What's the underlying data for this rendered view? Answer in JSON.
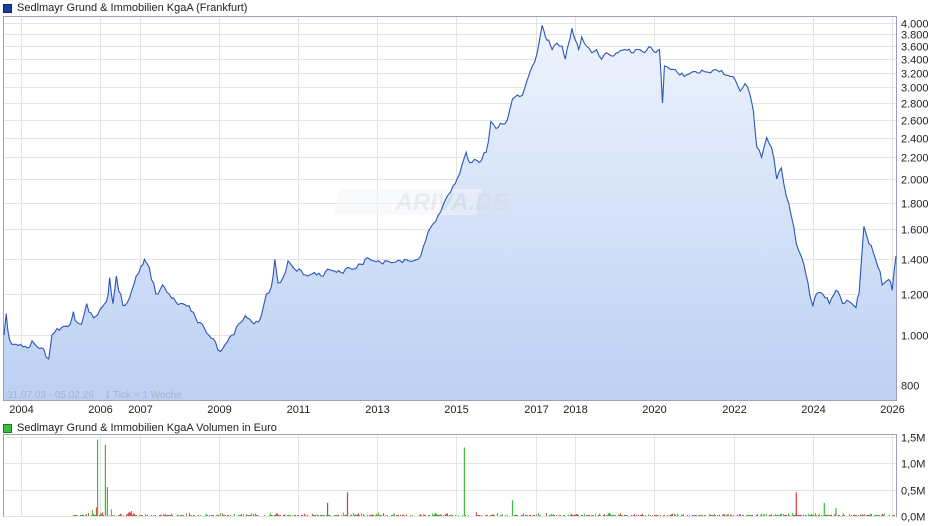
{
  "price_chart": {
    "title": "Sedlmayr Grund & Immobilien KgaA (Frankfurt)",
    "watermark": "ARIVA.DE",
    "info_text": "31.07.03 - 05.02.26    1 Tick = 1 Woche"
  },
  "volume_chart": {
    "title": "Sedlmayr Grund & Immobilien KgaA Volumen in Euro"
  },
  "colors": {
    "price_line": "#2a56b8",
    "area_top": "#eef3fd",
    "area_bottom": "#bcd0f3",
    "volume_up": "#3dbb3d",
    "volume_down": "#d23a3a",
    "grid": "#e4e4e4"
  },
  "chart_data": [
    {
      "type": "area",
      "name": "price",
      "y_scale": "log",
      "ylim": [
        750,
        4100
      ],
      "y_ticks": [
        {
          "value": 800,
          "label": "800"
        },
        {
          "value": 1000,
          "label": "1.000"
        },
        {
          "value": 1200,
          "label": "1.200"
        },
        {
          "value": 1400,
          "label": "1.400"
        },
        {
          "value": 1600,
          "label": "1.600"
        },
        {
          "value": 1800,
          "label": "1.800"
        },
        {
          "value": 2000,
          "label": "2.000"
        },
        {
          "value": 2200,
          "label": "2.200"
        },
        {
          "value": 2400,
          "label": "2.400"
        },
        {
          "value": 2600,
          "label": "2.600"
        },
        {
          "value": 2800,
          "label": "2.800"
        },
        {
          "value": 3000,
          "label": "3.000"
        },
        {
          "value": 3200,
          "label": "3.200"
        },
        {
          "value": 3400,
          "label": "3.400"
        },
        {
          "value": 3600,
          "label": "3.600"
        },
        {
          "value": 3800,
          "label": "3.800"
        },
        {
          "value": 4000,
          "label": "4.000"
        }
      ],
      "xlim": [
        "2003-07-31",
        "2026-02-05"
      ],
      "x_ticks": [
        {
          "date": "2004-01-01",
          "label": "2004"
        },
        {
          "date": "2006-01-01",
          "label": "2006"
        },
        {
          "date": "2007-01-01",
          "label": "2007"
        },
        {
          "date": "2009-01-01",
          "label": "2009"
        },
        {
          "date": "2011-01-01",
          "label": "2011"
        },
        {
          "date": "2013-01-01",
          "label": "2013"
        },
        {
          "date": "2015-01-01",
          "label": "2015"
        },
        {
          "date": "2017-01-01",
          "label": "2017"
        },
        {
          "date": "2018-01-01",
          "label": "2018"
        },
        {
          "date": "2020-01-01",
          "label": "2020"
        },
        {
          "date": "2022-01-01",
          "label": "2022"
        },
        {
          "date": "2024-01-01",
          "label": "2024"
        },
        {
          "date": "2026-01-01",
          "label": "2026"
        }
      ],
      "grid": true,
      "points": [
        [
          "2003-07-31",
          1000
        ],
        [
          "2003-08-20",
          1100
        ],
        [
          "2003-09-20",
          980
        ],
        [
          "2003-11-01",
          960
        ],
        [
          "2004-01-01",
          960
        ],
        [
          "2004-03-01",
          945
        ],
        [
          "2004-04-15",
          975
        ],
        [
          "2004-06-01",
          950
        ],
        [
          "2004-08-01",
          940
        ],
        [
          "2004-09-15",
          900
        ],
        [
          "2004-10-15",
          1000
        ],
        [
          "2004-12-01",
          1030
        ],
        [
          "2005-02-01",
          1040
        ],
        [
          "2005-04-01",
          1050
        ],
        [
          "2005-05-01",
          1110
        ],
        [
          "2005-06-01",
          1060
        ],
        [
          "2005-07-15",
          1050
        ],
        [
          "2005-09-01",
          1150
        ],
        [
          "2005-11-01",
          1080
        ],
        [
          "2006-01-01",
          1120
        ],
        [
          "2006-03-01",
          1160
        ],
        [
          "2006-04-01",
          1290
        ],
        [
          "2006-05-01",
          1150
        ],
        [
          "2006-06-01",
          1300
        ],
        [
          "2006-08-01",
          1140
        ],
        [
          "2006-10-01",
          1180
        ],
        [
          "2006-12-01",
          1300
        ],
        [
          "2007-01-15",
          1360
        ],
        [
          "2007-02-15",
          1400
        ],
        [
          "2007-04-01",
          1350
        ],
        [
          "2007-06-01",
          1200
        ],
        [
          "2007-08-01",
          1250
        ],
        [
          "2007-10-01",
          1200
        ],
        [
          "2007-12-01",
          1160
        ],
        [
          "2008-02-01",
          1150
        ],
        [
          "2008-04-01",
          1140
        ],
        [
          "2008-06-01",
          1080
        ],
        [
          "2008-08-01",
          1050
        ],
        [
          "2008-10-01",
          1000
        ],
        [
          "2008-12-01",
          970
        ],
        [
          "2009-01-15",
          930
        ],
        [
          "2009-03-01",
          960
        ],
        [
          "2009-05-01",
          1000
        ],
        [
          "2009-07-01",
          1050
        ],
        [
          "2009-09-01",
          1090
        ],
        [
          "2009-11-01",
          1060
        ],
        [
          "2010-01-01",
          1060
        ],
        [
          "2010-02-01",
          1100
        ],
        [
          "2010-03-15",
          1200
        ],
        [
          "2010-05-01",
          1240
        ],
        [
          "2010-06-01",
          1400
        ],
        [
          "2010-07-01",
          1260
        ],
        [
          "2010-08-15",
          1290
        ],
        [
          "2010-10-01",
          1390
        ],
        [
          "2010-12-01",
          1340
        ],
        [
          "2011-02-01",
          1330
        ],
        [
          "2011-04-01",
          1300
        ],
        [
          "2011-06-01",
          1320
        ],
        [
          "2011-08-01",
          1300
        ],
        [
          "2011-10-01",
          1340
        ],
        [
          "2011-12-01",
          1330
        ],
        [
          "2012-02-01",
          1320
        ],
        [
          "2012-04-01",
          1350
        ],
        [
          "2012-06-01",
          1340
        ],
        [
          "2012-08-01",
          1370
        ],
        [
          "2012-10-01",
          1410
        ],
        [
          "2012-12-01",
          1390
        ],
        [
          "2013-02-01",
          1380
        ],
        [
          "2013-04-01",
          1390
        ],
        [
          "2013-06-01",
          1380
        ],
        [
          "2013-08-01",
          1390
        ],
        [
          "2013-10-01",
          1395
        ],
        [
          "2013-12-01",
          1390
        ],
        [
          "2014-01-15",
          1400
        ],
        [
          "2014-03-01",
          1480
        ],
        [
          "2014-04-15",
          1580
        ],
        [
          "2014-06-01",
          1640
        ],
        [
          "2014-07-15",
          1700
        ],
        [
          "2014-09-01",
          1780
        ],
        [
          "2014-10-15",
          1860
        ],
        [
          "2014-12-01",
          1940
        ],
        [
          "2015-02-01",
          2050
        ],
        [
          "2015-04-01",
          2250
        ],
        [
          "2015-05-01",
          2150
        ],
        [
          "2015-06-15",
          2180
        ],
        [
          "2015-08-01",
          2150
        ],
        [
          "2015-10-01",
          2250
        ],
        [
          "2015-11-15",
          2580
        ],
        [
          "2016-01-01",
          2500
        ],
        [
          "2016-03-01",
          2550
        ],
        [
          "2016-04-15",
          2600
        ],
        [
          "2016-06-01",
          2850
        ],
        [
          "2016-07-15",
          2900
        ],
        [
          "2016-09-01",
          2900
        ],
        [
          "2016-10-15",
          3100
        ],
        [
          "2016-12-01",
          3300
        ],
        [
          "2017-01-15",
          3500
        ],
        [
          "2017-03-01",
          3950
        ],
        [
          "2017-04-01",
          3750
        ],
        [
          "2017-05-01",
          3700
        ],
        [
          "2017-06-01",
          3550
        ],
        [
          "2017-07-15",
          3650
        ],
        [
          "2017-09-01",
          3600
        ],
        [
          "2017-10-01",
          3400
        ],
        [
          "2017-11-01",
          3650
        ],
        [
          "2017-12-01",
          3900
        ],
        [
          "2018-01-01",
          3700
        ],
        [
          "2018-02-01",
          3550
        ],
        [
          "2018-03-01",
          3750
        ],
        [
          "2018-04-15",
          3600
        ],
        [
          "2018-06-01",
          3500
        ],
        [
          "2018-07-15",
          3550
        ],
        [
          "2018-09-01",
          3400
        ],
        [
          "2018-10-15",
          3500
        ],
        [
          "2018-12-01",
          3450
        ],
        [
          "2019-02-01",
          3500
        ],
        [
          "2019-04-01",
          3550
        ],
        [
          "2019-06-01",
          3500
        ],
        [
          "2019-08-01",
          3550
        ],
        [
          "2019-10-01",
          3500
        ],
        [
          "2019-12-01",
          3580
        ],
        [
          "2020-01-15",
          3500
        ],
        [
          "2020-02-15",
          3550
        ],
        [
          "2020-03-15",
          2800
        ],
        [
          "2020-04-01",
          3300
        ],
        [
          "2020-06-01",
          3250
        ],
        [
          "2020-08-01",
          3200
        ],
        [
          "2020-10-01",
          3150
        ],
        [
          "2020-12-01",
          3200
        ],
        [
          "2021-02-01",
          3200
        ],
        [
          "2021-04-01",
          3220
        ],
        [
          "2021-06-01",
          3200
        ],
        [
          "2021-08-01",
          3240
        ],
        [
          "2021-10-01",
          3180
        ],
        [
          "2021-12-01",
          3150
        ],
        [
          "2022-01-15",
          3100
        ],
        [
          "2022-03-01",
          2950
        ],
        [
          "2022-04-15",
          3050
        ],
        [
          "2022-06-01",
          2900
        ],
        [
          "2022-07-01",
          2700
        ],
        [
          "2022-08-01",
          2300
        ],
        [
          "2022-09-15",
          2200
        ],
        [
          "2022-11-01",
          2400
        ],
        [
          "2022-12-15",
          2300
        ],
        [
          "2023-02-01",
          2000
        ],
        [
          "2023-03-15",
          2100
        ],
        [
          "2023-05-01",
          1850
        ],
        [
          "2023-06-15",
          1700
        ],
        [
          "2023-08-01",
          1500
        ],
        [
          "2023-09-15",
          1420
        ],
        [
          "2023-11-01",
          1300
        ],
        [
          "2023-12-01",
          1200
        ],
        [
          "2024-01-01",
          1140
        ],
        [
          "2024-02-01",
          1200
        ],
        [
          "2024-04-01",
          1200
        ],
        [
          "2024-06-01",
          1150
        ],
        [
          "2024-08-01",
          1220
        ],
        [
          "2024-10-01",
          1150
        ],
        [
          "2024-12-01",
          1160
        ],
        [
          "2025-02-01",
          1130
        ],
        [
          "2025-03-01",
          1200
        ],
        [
          "2025-04-15",
          1620
        ],
        [
          "2025-06-01",
          1500
        ],
        [
          "2025-08-01",
          1400
        ],
        [
          "2025-10-01",
          1250
        ],
        [
          "2025-12-01",
          1280
        ],
        [
          "2026-01-01",
          1220
        ],
        [
          "2026-02-05",
          1420
        ]
      ]
    },
    {
      "type": "bar",
      "name": "volume",
      "ylim": [
        0,
        1.5
      ],
      "unit": "M Euro",
      "y_ticks": [
        {
          "value": 0,
          "label": "0,0M"
        },
        {
          "value": 0.5,
          "label": "0,5M"
        },
        {
          "value": 1.0,
          "label": "1,0M"
        },
        {
          "value": 1.5,
          "label": "1,5M"
        }
      ],
      "xlim": [
        "2003-07-31",
        "2026-02-05"
      ],
      "grid": true,
      "notable_bars": [
        {
          "date": "2005-12-10",
          "value": 1.45,
          "color": "green"
        },
        {
          "date": "2006-02-20",
          "value": 1.35,
          "color": "green"
        },
        {
          "date": "2006-03-10",
          "value": 0.55,
          "color": "green"
        },
        {
          "date": "2015-03-15",
          "value": 1.3,
          "color": "green"
        },
        {
          "date": "2011-10-01",
          "value": 0.25,
          "color": "red"
        },
        {
          "date": "2012-04-01",
          "value": 0.45,
          "color": "red"
        },
        {
          "date": "2016-06-01",
          "value": 0.3,
          "color": "green"
        },
        {
          "date": "2023-08-01",
          "value": 0.45,
          "color": "red"
        },
        {
          "date": "2024-04-15",
          "value": 0.25,
          "color": "green"
        },
        {
          "date": "2024-08-01",
          "value": 0.15,
          "color": "green"
        }
      ]
    }
  ]
}
